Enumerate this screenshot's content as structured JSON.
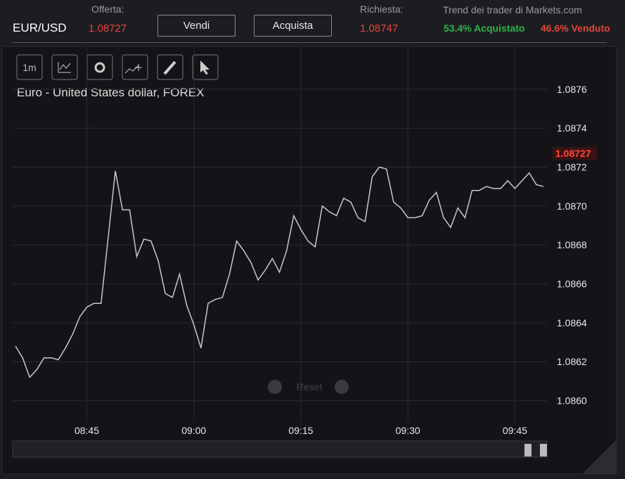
{
  "header": {
    "symbol": "EUR/USD",
    "offer": {
      "label": "Offerta:",
      "value": 1.08727
    },
    "sell": "Vendi",
    "buy": "Acquista",
    "ask": {
      "label": "Richiesta:",
      "value": 1.08747
    },
    "trend": {
      "title": "Trend dei trader di Markets.com",
      "bought": "53.4% Acquistato",
      "sold": "46.6% Venduto"
    }
  },
  "toolbar": {
    "interval": "1m",
    "reset": "Reset"
  },
  "chart_data": {
    "type": "line",
    "title": "Euro - United States dollar, FOREX",
    "color": "#c8c8c8",
    "grid": true,
    "x": [
      "08:35",
      "08:36",
      "08:37",
      "08:38",
      "08:39",
      "08:40",
      "08:41",
      "08:42",
      "08:43",
      "08:44",
      "08:45",
      "08:46",
      "08:47",
      "08:48",
      "08:49",
      "08:50",
      "08:51",
      "08:52",
      "08:53",
      "08:54",
      "08:55",
      "08:56",
      "08:57",
      "08:58",
      "08:59",
      "09:00",
      "09:01",
      "09:02",
      "09:03",
      "09:04",
      "09:05",
      "09:06",
      "09:07",
      "09:08",
      "09:09",
      "09:10",
      "09:11",
      "09:12",
      "09:13",
      "09:14",
      "09:15",
      "09:16",
      "09:17",
      "09:18",
      "09:19",
      "09:20",
      "09:21",
      "09:22",
      "09:23",
      "09:24",
      "09:25",
      "09:26",
      "09:27",
      "09:28",
      "09:29",
      "09:30",
      "09:31",
      "09:32",
      "09:33",
      "09:34",
      "09:35",
      "09:36",
      "09:37",
      "09:38",
      "09:39",
      "09:40",
      "09:41",
      "09:42",
      "09:43",
      "09:44",
      "09:45",
      "09:46",
      "09:47",
      "09:48",
      "09:49"
    ],
    "values": [
      1.08628,
      1.08622,
      1.08612,
      1.08616,
      1.08622,
      1.08622,
      1.08621,
      1.08627,
      1.08634,
      1.08643,
      1.08648,
      1.0865,
      1.0865,
      1.08684,
      1.08718,
      1.08698,
      1.08698,
      1.08674,
      1.08683,
      1.08682,
      1.08672,
      1.08655,
      1.08653,
      1.08665,
      1.08649,
      1.08639,
      1.08627,
      1.0865,
      1.08652,
      1.08653,
      1.08665,
      1.08682,
      1.08677,
      1.08671,
      1.08662,
      1.08667,
      1.08673,
      1.08666,
      1.08677,
      1.08695,
      1.08688,
      1.08682,
      1.08679,
      1.087,
      1.08697,
      1.08695,
      1.08704,
      1.08702,
      1.08694,
      1.08692,
      1.08715,
      1.0872,
      1.08719,
      1.08702,
      1.08699,
      1.08694,
      1.08694,
      1.08695,
      1.08703,
      1.08707,
      1.08694,
      1.08689,
      1.08699,
      1.08694,
      1.08708,
      1.08708,
      1.0871,
      1.08709,
      1.08709,
      1.08713,
      1.08709,
      1.08713,
      1.08717,
      1.08711,
      1.0871
    ],
    "xlim": [
      "08:35",
      "09:49"
    ],
    "xticks": [
      "08:45",
      "09:00",
      "09:15",
      "09:30",
      "09:45"
    ],
    "ylim": [
      1.08589,
      1.08782
    ],
    "yticks": [
      1.0876,
      1.0874,
      1.0872,
      {
        "value": 1.087,
        "label": "1.0870"
      },
      1.0868,
      1.0866,
      1.0864,
      1.0862,
      {
        "value": 1.086,
        "label": "1.0860"
      }
    ]
  }
}
